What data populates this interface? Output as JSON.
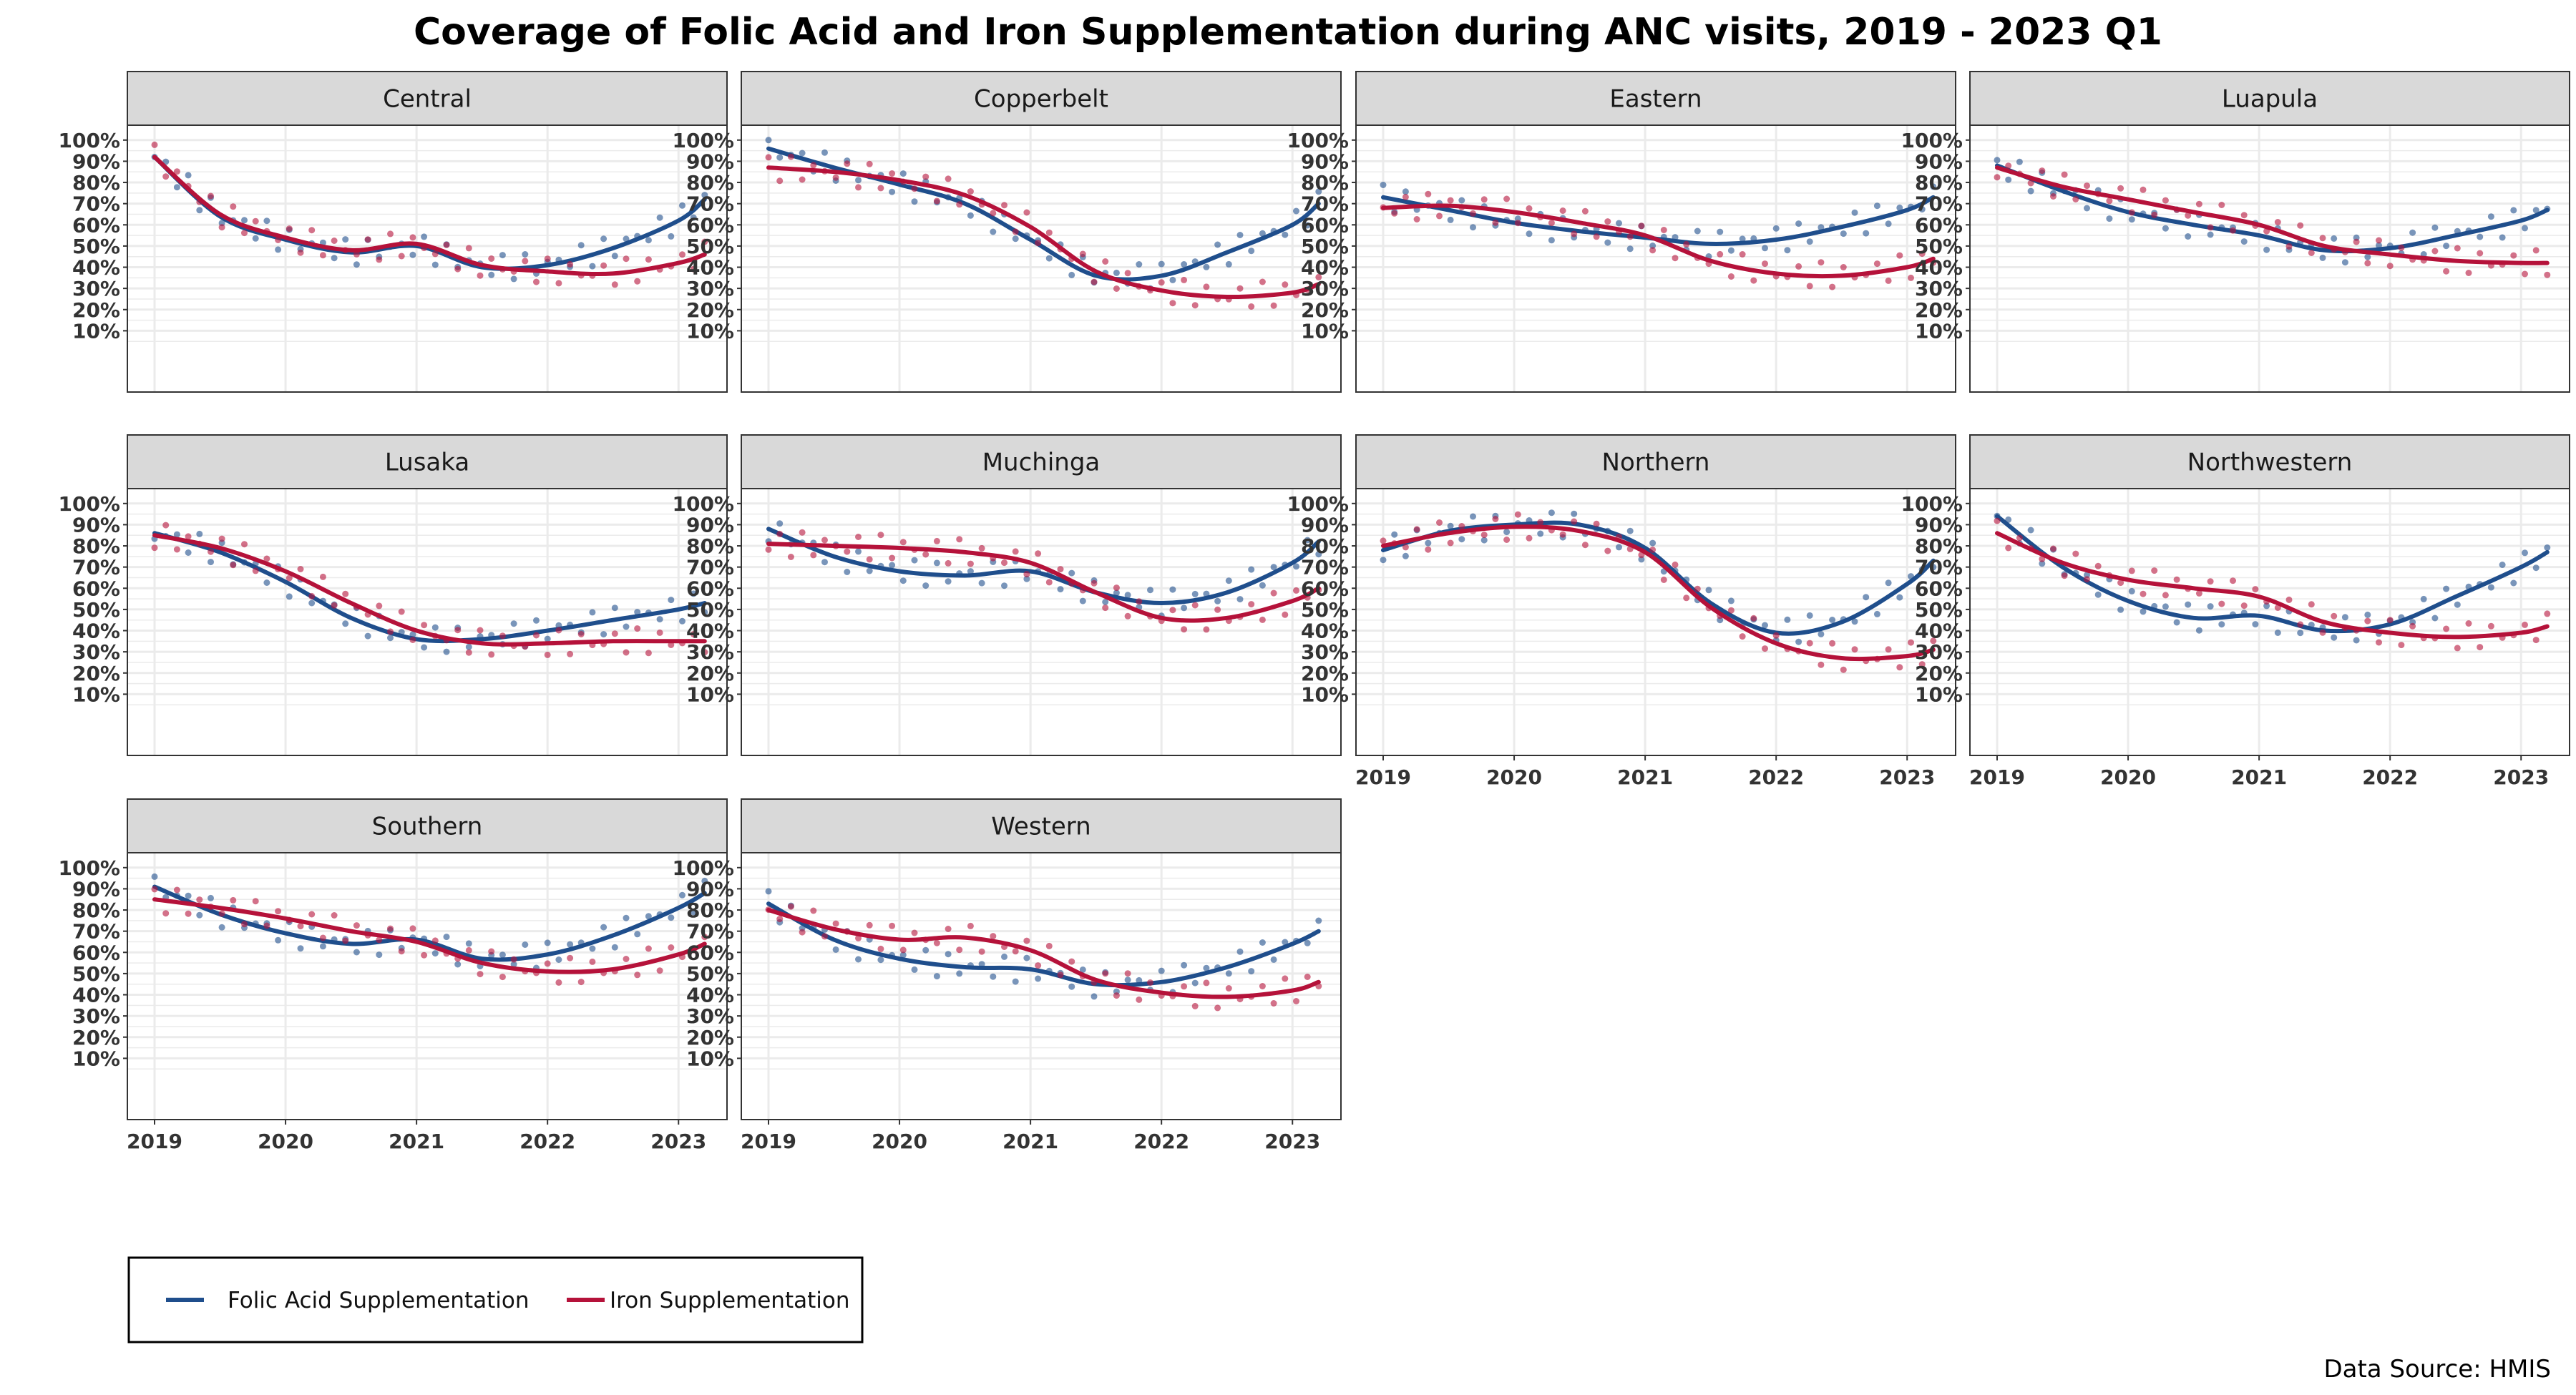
{
  "title": "Coverage of Folic Acid and Iron Supplementation during ANC visits, 2019 - 2023 Q1",
  "caption": "Data Source: HMIS",
  "colors": {
    "folic": "#1f4e8c",
    "iron": "#b5123a",
    "strip_bg": "#d9d9d9",
    "grid": "#ebebeb"
  },
  "legend": {
    "items": [
      "Folic Acid Supplementation",
      "Iron Supplementation"
    ]
  },
  "chart_data": [
    {
      "type": "line",
      "facet": "Central",
      "xlim": [
        2019,
        2023.25
      ],
      "ylim": [
        0,
        1.05
      ],
      "yticks": [
        "10%",
        "20%",
        "30%",
        "40%",
        "50%",
        "60%",
        "70%",
        "80%",
        "90%",
        "100%"
      ],
      "xticks": [
        "2019",
        "2020",
        "2021",
        "2022",
        "2023"
      ],
      "series": [
        {
          "name": "Folic Acid Supplementation",
          "x": [
            2019,
            2019.5,
            2020,
            2020.5,
            2021,
            2021.5,
            2022,
            2022.5,
            2023,
            2023.2
          ],
          "y": [
            0.92,
            0.64,
            0.53,
            0.47,
            0.5,
            0.4,
            0.41,
            0.49,
            0.62,
            0.72
          ]
        },
        {
          "name": "Iron Supplementation",
          "x": [
            2019,
            2019.5,
            2020,
            2020.5,
            2021,
            2021.5,
            2022,
            2022.5,
            2023,
            2023.2
          ],
          "y": [
            0.92,
            0.65,
            0.54,
            0.48,
            0.51,
            0.41,
            0.38,
            0.37,
            0.42,
            0.46
          ]
        }
      ]
    },
    {
      "type": "line",
      "facet": "Copperbelt",
      "xlim": [
        2019,
        2023.25
      ],
      "ylim": [
        0,
        1.05
      ],
      "yticks": [
        "10%",
        "20%",
        "30%",
        "40%",
        "50%",
        "60%",
        "70%",
        "80%",
        "90%",
        "100%"
      ],
      "xticks": [
        "2019",
        "2020",
        "2021",
        "2022",
        "2023"
      ],
      "series": [
        {
          "name": "Folic Acid Supplementation",
          "x": [
            2019,
            2019.5,
            2020,
            2020.5,
            2021,
            2021.5,
            2022,
            2022.5,
            2023,
            2023.2
          ],
          "y": [
            0.96,
            0.87,
            0.79,
            0.7,
            0.53,
            0.36,
            0.36,
            0.47,
            0.6,
            0.7
          ]
        },
        {
          "name": "Iron Supplementation",
          "x": [
            2019,
            2019.5,
            2020,
            2020.5,
            2021,
            2021.5,
            2022,
            2022.5,
            2023,
            2023.2
          ],
          "y": [
            0.87,
            0.85,
            0.81,
            0.74,
            0.59,
            0.38,
            0.29,
            0.26,
            0.28,
            0.32
          ]
        }
      ]
    },
    {
      "type": "line",
      "facet": "Eastern",
      "xlim": [
        2019,
        2023.25
      ],
      "ylim": [
        0,
        1.05
      ],
      "yticks": [
        "10%",
        "20%",
        "30%",
        "40%",
        "50%",
        "60%",
        "70%",
        "80%",
        "90%",
        "100%"
      ],
      "xticks": [
        "2019",
        "2020",
        "2021",
        "2022",
        "2023"
      ],
      "series": [
        {
          "name": "Folic Acid Supplementation",
          "x": [
            2019,
            2019.5,
            2020,
            2020.5,
            2021,
            2021.5,
            2022,
            2022.5,
            2023,
            2023.2
          ],
          "y": [
            0.73,
            0.67,
            0.61,
            0.57,
            0.54,
            0.51,
            0.53,
            0.59,
            0.67,
            0.73
          ]
        },
        {
          "name": "Iron Supplementation",
          "x": [
            2019,
            2019.5,
            2020,
            2020.5,
            2021,
            2021.5,
            2022,
            2022.5,
            2023,
            2023.2
          ],
          "y": [
            0.68,
            0.69,
            0.66,
            0.61,
            0.55,
            0.43,
            0.37,
            0.36,
            0.4,
            0.44
          ]
        }
      ]
    },
    {
      "type": "line",
      "facet": "Luapula",
      "xlim": [
        2019,
        2023.25
      ],
      "ylim": [
        0,
        1.05
      ],
      "yticks": [
        "10%",
        "20%",
        "30%",
        "40%",
        "50%",
        "60%",
        "70%",
        "80%",
        "90%",
        "100%"
      ],
      "xticks": [
        "2019",
        "2020",
        "2021",
        "2022",
        "2023"
      ],
      "series": [
        {
          "name": "Folic Acid Supplementation",
          "x": [
            2019,
            2019.5,
            2020,
            2020.5,
            2021,
            2021.5,
            2022,
            2022.5,
            2023,
            2023.2
          ],
          "y": [
            0.88,
            0.76,
            0.66,
            0.6,
            0.55,
            0.48,
            0.49,
            0.55,
            0.62,
            0.67
          ]
        },
        {
          "name": "Iron Supplementation",
          "x": [
            2019,
            2019.5,
            2020,
            2020.5,
            2021,
            2021.5,
            2022,
            2022.5,
            2023,
            2023.2
          ],
          "y": [
            0.87,
            0.78,
            0.72,
            0.66,
            0.6,
            0.5,
            0.46,
            0.43,
            0.42,
            0.42
          ]
        }
      ]
    },
    {
      "type": "line",
      "facet": "Lusaka",
      "xlim": [
        2019,
        2023.25
      ],
      "ylim": [
        0,
        1.05
      ],
      "yticks": [
        "10%",
        "20%",
        "30%",
        "40%",
        "50%",
        "60%",
        "70%",
        "80%",
        "90%",
        "100%"
      ],
      "xticks": [
        "2019",
        "2020",
        "2021",
        "2022",
        "2023"
      ],
      "series": [
        {
          "name": "Folic Acid Supplementation",
          "x": [
            2019,
            2019.5,
            2020,
            2020.5,
            2021,
            2021.5,
            2022,
            2022.5,
            2023,
            2023.2
          ],
          "y": [
            0.86,
            0.77,
            0.63,
            0.46,
            0.36,
            0.36,
            0.4,
            0.45,
            0.5,
            0.53
          ]
        },
        {
          "name": "Iron Supplementation",
          "x": [
            2019,
            2019.5,
            2020,
            2020.5,
            2021,
            2021.5,
            2022,
            2022.5,
            2023,
            2023.2
          ],
          "y": [
            0.85,
            0.79,
            0.68,
            0.53,
            0.4,
            0.34,
            0.34,
            0.35,
            0.35,
            0.35
          ]
        }
      ]
    },
    {
      "type": "line",
      "facet": "Muchinga",
      "xlim": [
        2019,
        2023.25
      ],
      "ylim": [
        0,
        1.05
      ],
      "yticks": [
        "10%",
        "20%",
        "30%",
        "40%",
        "50%",
        "60%",
        "70%",
        "80%",
        "90%",
        "100%"
      ],
      "xticks": [
        "2019",
        "2020",
        "2021",
        "2022",
        "2023"
      ],
      "series": [
        {
          "name": "Folic Acid Supplementation",
          "x": [
            2019,
            2019.5,
            2020,
            2020.5,
            2021,
            2021.5,
            2022,
            2022.5,
            2023,
            2023.2
          ],
          "y": [
            0.88,
            0.75,
            0.68,
            0.66,
            0.68,
            0.58,
            0.53,
            0.58,
            0.72,
            0.82
          ]
        },
        {
          "name": "Iron Supplementation",
          "x": [
            2019,
            2019.5,
            2020,
            2020.5,
            2021,
            2021.5,
            2022,
            2022.5,
            2023,
            2023.2
          ],
          "y": [
            0.81,
            0.8,
            0.79,
            0.77,
            0.72,
            0.58,
            0.46,
            0.46,
            0.54,
            0.6
          ]
        }
      ]
    },
    {
      "type": "line",
      "facet": "Northern",
      "xlim": [
        2019,
        2023.25
      ],
      "ylim": [
        0,
        1.05
      ],
      "yticks": [
        "10%",
        "20%",
        "30%",
        "40%",
        "50%",
        "60%",
        "70%",
        "80%",
        "90%",
        "100%"
      ],
      "xticks": [
        "2019",
        "2020",
        "2021",
        "2022",
        "2023"
      ],
      "series": [
        {
          "name": "Folic Acid Supplementation",
          "x": [
            2019,
            2019.5,
            2020,
            2020.5,
            2021,
            2021.5,
            2022,
            2022.5,
            2023,
            2023.2
          ],
          "y": [
            0.78,
            0.87,
            0.9,
            0.9,
            0.79,
            0.53,
            0.39,
            0.44,
            0.62,
            0.73
          ]
        },
        {
          "name": "Iron Supplementation",
          "x": [
            2019,
            2019.5,
            2020,
            2020.5,
            2021,
            2021.5,
            2022,
            2022.5,
            2023,
            2023.2
          ],
          "y": [
            0.8,
            0.86,
            0.89,
            0.87,
            0.77,
            0.51,
            0.34,
            0.27,
            0.28,
            0.31
          ]
        }
      ]
    },
    {
      "type": "line",
      "facet": "Northwestern",
      "xlim": [
        2019,
        2023.25
      ],
      "ylim": [
        0,
        1.05
      ],
      "yticks": [
        "10%",
        "20%",
        "30%",
        "40%",
        "50%",
        "60%",
        "70%",
        "80%",
        "90%",
        "100%"
      ],
      "xticks": [
        "2019",
        "2020",
        "2021",
        "2022",
        "2023"
      ],
      "series": [
        {
          "name": "Folic Acid Supplementation",
          "x": [
            2019,
            2019.5,
            2020,
            2020.5,
            2021,
            2021.5,
            2022,
            2022.5,
            2023,
            2023.2
          ],
          "y": [
            0.94,
            0.7,
            0.54,
            0.46,
            0.47,
            0.4,
            0.43,
            0.56,
            0.7,
            0.77
          ]
        },
        {
          "name": "Iron Supplementation",
          "x": [
            2019,
            2019.5,
            2020,
            2020.5,
            2021,
            2021.5,
            2022,
            2022.5,
            2023,
            2023.2
          ],
          "y": [
            0.86,
            0.72,
            0.64,
            0.6,
            0.56,
            0.44,
            0.39,
            0.37,
            0.39,
            0.42
          ]
        }
      ]
    },
    {
      "type": "line",
      "facet": "Southern",
      "xlim": [
        2019,
        2023.25
      ],
      "ylim": [
        0,
        1.05
      ],
      "yticks": [
        "10%",
        "20%",
        "30%",
        "40%",
        "50%",
        "60%",
        "70%",
        "80%",
        "90%",
        "100%"
      ],
      "xticks": [
        "2019",
        "2020",
        "2021",
        "2022",
        "2023"
      ],
      "series": [
        {
          "name": "Folic Acid Supplementation",
          "x": [
            2019,
            2019.5,
            2020,
            2020.5,
            2021,
            2021.5,
            2022,
            2022.5,
            2023,
            2023.2
          ],
          "y": [
            0.91,
            0.78,
            0.69,
            0.64,
            0.66,
            0.57,
            0.59,
            0.68,
            0.81,
            0.88
          ]
        },
        {
          "name": "Iron Supplementation",
          "x": [
            2019,
            2019.5,
            2020,
            2020.5,
            2021,
            2021.5,
            2022,
            2022.5,
            2023,
            2023.2
          ],
          "y": [
            0.85,
            0.81,
            0.76,
            0.7,
            0.65,
            0.55,
            0.51,
            0.52,
            0.59,
            0.64
          ]
        }
      ]
    },
    {
      "type": "line",
      "facet": "Western",
      "xlim": [
        2019,
        2023.25
      ],
      "ylim": [
        0,
        1.05
      ],
      "yticks": [
        "10%",
        "20%",
        "30%",
        "40%",
        "50%",
        "60%",
        "70%",
        "80%",
        "90%",
        "100%"
      ],
      "xticks": [
        "2019",
        "2020",
        "2021",
        "2022",
        "2023"
      ],
      "series": [
        {
          "name": "Folic Acid Supplementation",
          "x": [
            2019,
            2019.5,
            2020,
            2020.5,
            2021,
            2021.5,
            2022,
            2022.5,
            2023,
            2023.2
          ],
          "y": [
            0.83,
            0.66,
            0.57,
            0.53,
            0.52,
            0.45,
            0.46,
            0.53,
            0.64,
            0.7
          ]
        },
        {
          "name": "Iron Supplementation",
          "x": [
            2019,
            2019.5,
            2020,
            2020.5,
            2021,
            2021.5,
            2022,
            2022.5,
            2023,
            2023.2
          ],
          "y": [
            0.8,
            0.71,
            0.66,
            0.67,
            0.61,
            0.47,
            0.41,
            0.39,
            0.42,
            0.46
          ]
        }
      ]
    }
  ]
}
